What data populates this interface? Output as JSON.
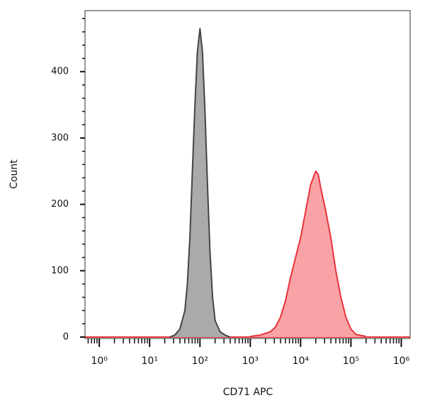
{
  "chart_data": {
    "type": "histogram-overlay",
    "xlabel": "CD71 APC",
    "ylabel": "Count",
    "xscale": "log",
    "xlim": [
      0.52,
      1500000
    ],
    "xticks": [
      {
        "value": 1,
        "label": "10⁰"
      },
      {
        "value": 10,
        "label": "10¹"
      },
      {
        "value": 100,
        "label": "10²"
      },
      {
        "value": 1000,
        "label": "10³"
      },
      {
        "value": 10000,
        "label": "10⁴"
      },
      {
        "value": 100000,
        "label": "10⁵"
      },
      {
        "value": 1000000,
        "label": "10⁶"
      }
    ],
    "ylim": [
      0,
      492
    ],
    "yticks": [
      0,
      100,
      200,
      300,
      400
    ],
    "series": [
      {
        "color": "#444444",
        "fill": "#aaaaaa",
        "x": [
          25.1,
          31.6,
          39.8,
          50.1,
          56.2,
          63.1,
          70.8,
          79.4,
          89.1,
          100,
          112,
          126,
          141,
          158,
          178,
          200,
          251,
          316,
          398
        ],
        "values": [
          0,
          3,
          12,
          40,
          80,
          150,
          250,
          350,
          430,
          465,
          430,
          340,
          230,
          130,
          60,
          25,
          8,
          3,
          0
        ]
      },
      {
        "color": "#e8333a",
        "fill": "#f9a3a6",
        "x": [
          1000,
          1585,
          2512,
          3162,
          3981,
          5012,
          6310,
          7943,
          10000,
          12589,
          15849,
          19953,
          22387,
          25119,
          31623,
          39811,
          50119,
          63096,
          79433,
          100000,
          125893,
          199526
        ],
        "values": [
          1,
          3,
          8,
          15,
          30,
          55,
          90,
          120,
          150,
          190,
          230,
          250,
          245,
          225,
          190,
          150,
          100,
          60,
          30,
          12,
          4,
          1
        ]
      }
    ]
  }
}
